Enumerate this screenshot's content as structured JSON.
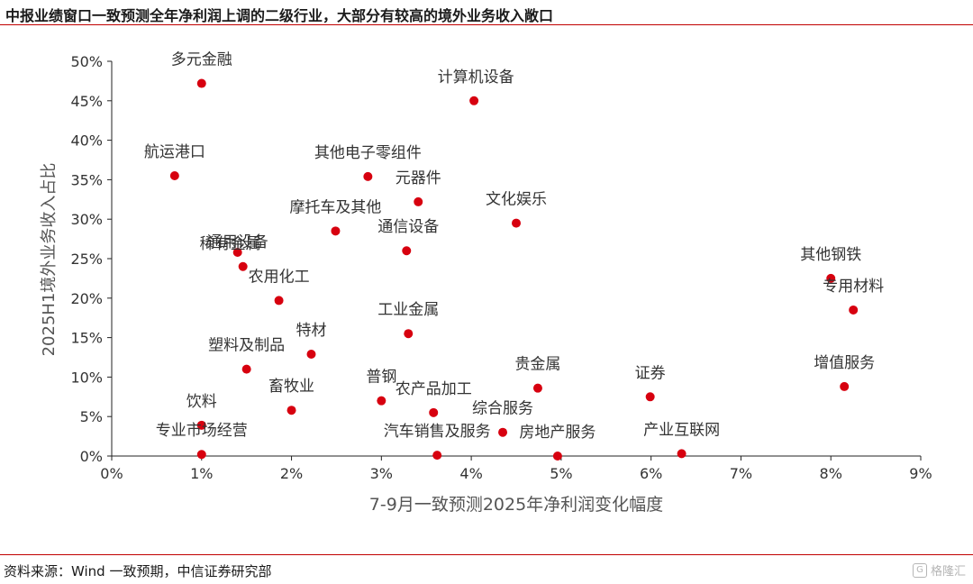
{
  "header": {
    "title": "中报业绩窗口一致预测全年净利润上调的二级行业，大部分有较高的境外业务收入敞口"
  },
  "footer": {
    "source": "资料来源：Wind 一致预期，中信证券研究部",
    "watermark": "格隆汇",
    "watermark_icon": "G"
  },
  "colors": {
    "point": "#d7000f",
    "axis": "#222222",
    "text": "#333333",
    "accent_rule": "#c00000"
  },
  "chart_data": {
    "type": "scatter",
    "xlabel": "7-9月一致预测2025年净利润变化幅度",
    "ylabel": "2025H1境外业务收入占比",
    "xlim": [
      0,
      9
    ],
    "ylim": [
      0,
      50
    ],
    "xticks": [
      "0%",
      "1%",
      "2%",
      "3%",
      "4%",
      "5%",
      "6%",
      "7%",
      "8%",
      "9%"
    ],
    "yticks": [
      "0%",
      "5%",
      "10%",
      "15%",
      "20%",
      "25%",
      "30%",
      "35%",
      "40%",
      "45%",
      "50%"
    ],
    "points": [
      {
        "label": "多元金融",
        "x": 1.0,
        "y": 47.2
      },
      {
        "label": "计算机设备",
        "x": 4.03,
        "y": 45.0
      },
      {
        "label": "航运港口",
        "x": 0.7,
        "y": 35.5
      },
      {
        "label": "其他电子零组件",
        "x": 2.85,
        "y": 35.4
      },
      {
        "label": "元器件",
        "x": 3.41,
        "y": 32.2
      },
      {
        "label": "文化娱乐",
        "x": 4.5,
        "y": 29.5
      },
      {
        "label": "摩托车及其他",
        "x": 2.49,
        "y": 28.5
      },
      {
        "label": "通用设备",
        "x": 1.4,
        "y": 25.8
      },
      {
        "label": "通信设备",
        "x": 3.28,
        "y": 26.0
      },
      {
        "label": "稀有金属",
        "x": 1.46,
        "y": 24.0
      },
      {
        "label": "其他钢铁",
        "x": 8.0,
        "y": 22.5
      },
      {
        "label": "农用化工",
        "x": 1.86,
        "y": 19.7
      },
      {
        "label": "专用材料",
        "x": 8.25,
        "y": 18.5
      },
      {
        "label": "工业金属",
        "x": 3.3,
        "y": 15.5
      },
      {
        "label": "特材",
        "x": 2.22,
        "y": 12.9
      },
      {
        "label": "塑料及制品",
        "x": 1.5,
        "y": 11.0
      },
      {
        "label": "增值服务",
        "x": 8.15,
        "y": 8.8
      },
      {
        "label": "贵金属",
        "x": 4.74,
        "y": 8.6
      },
      {
        "label": "证券",
        "x": 5.99,
        "y": 7.5
      },
      {
        "label": "普钢",
        "x": 3.0,
        "y": 7.0
      },
      {
        "label": "畜牧业",
        "x": 2.0,
        "y": 5.8
      },
      {
        "label": "农产品加工",
        "x": 3.58,
        "y": 5.5
      },
      {
        "label": "饮料",
        "x": 1.0,
        "y": 3.9
      },
      {
        "label": "综合服务",
        "x": 4.35,
        "y": 3.0
      },
      {
        "label": "专业市场经营",
        "x": 1.0,
        "y": 0.2
      },
      {
        "label": "汽车销售及服务",
        "x": 3.62,
        "y": 0.1
      },
      {
        "label": "房地产服务",
        "x": 4.96,
        "y": 0.0
      },
      {
        "label": "产业互联网",
        "x": 6.34,
        "y": 0.3
      }
    ]
  }
}
